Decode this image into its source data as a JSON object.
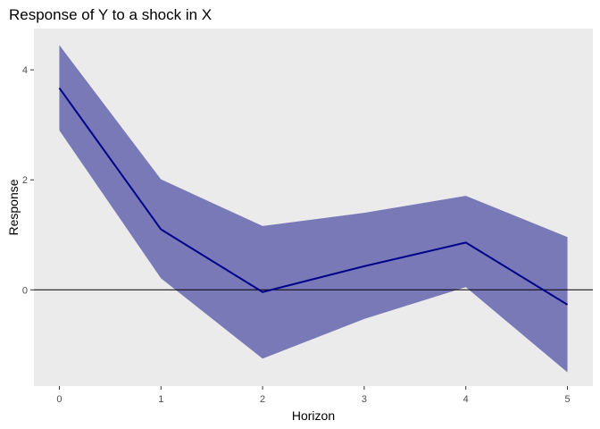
{
  "chart_data": {
    "type": "area",
    "title": "Response of Y to a shock in X",
    "xlabel": "Horizon",
    "ylabel": "Response",
    "x": [
      0,
      1,
      2,
      3,
      4,
      5
    ],
    "xlim": [
      -0.25,
      5.25
    ],
    "ylim": [
      -1.75,
      4.75
    ],
    "x_ticks": [
      0,
      1,
      2,
      3,
      4,
      5
    ],
    "y_ticks": [
      0,
      2,
      4
    ],
    "grid": false,
    "legend": "none",
    "reference_line": {
      "y": 0,
      "color": "#000000"
    },
    "series": [
      {
        "kind": "line",
        "values": [
          3.67,
          1.1,
          -0.04,
          0.43,
          0.86,
          -0.27
        ],
        "color": "#00008B"
      },
      {
        "kind": "band",
        "lower": [
          2.9,
          0.21,
          -1.25,
          -0.53,
          0.05,
          -1.5
        ],
        "upper": [
          4.45,
          2.01,
          1.16,
          1.4,
          1.71,
          0.96
        ],
        "color": "#1C1C8C",
        "opacity": 0.55
      }
    ],
    "colors": {
      "panel_background": "#EBEBEB",
      "tick_text": "#4D4D4D",
      "tick_mark": "#333333"
    }
  }
}
